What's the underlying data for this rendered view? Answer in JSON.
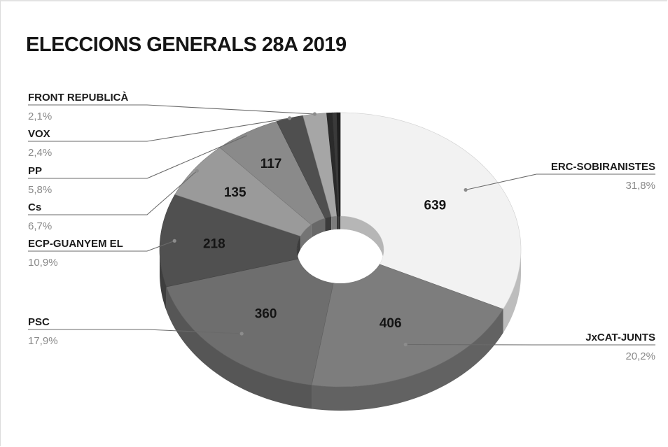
{
  "chart_data": {
    "type": "pie",
    "title": "ELECCIONS GENERALS 28A 2019",
    "colors": [
      "#f2f2f2",
      "#7d7d7d",
      "#6e6e6e",
      "#505050",
      "#9a9a9a",
      "#8a8a8a",
      "#4f4f4f",
      "#a6a6a6",
      "#2b2b2b",
      "#3a3a3a",
      "#1f1f1f"
    ],
    "slices": [
      {
        "label": "ERC-SOBIRANISTES",
        "value": 639,
        "percent": "31,8%"
      },
      {
        "label": "JxCAT-JUNTS",
        "value": 406,
        "percent": "20,2%"
      },
      {
        "label": "PSC",
        "value": 360,
        "percent": "17,9%"
      },
      {
        "label": "ECP-GUANYEM EL",
        "value": 218,
        "percent": "10,9%"
      },
      {
        "label": "Cs",
        "value": 135,
        "percent": "6,7%"
      },
      {
        "label": "PP",
        "value": 117,
        "percent": "5,8%"
      },
      {
        "label": "VOX",
        "value": 48,
        "percent": "2,4%"
      },
      {
        "label": "FRONT REPUBLICÀ",
        "value": 42,
        "percent": "2,1%"
      },
      {
        "label": "",
        "value": 10,
        "percent": ""
      },
      {
        "label": "",
        "value": 8,
        "percent": ""
      },
      {
        "label": "",
        "value": 6,
        "percent": ""
      }
    ],
    "value_labels_shown": [
      639,
      406,
      360,
      218,
      135,
      117
    ]
  }
}
